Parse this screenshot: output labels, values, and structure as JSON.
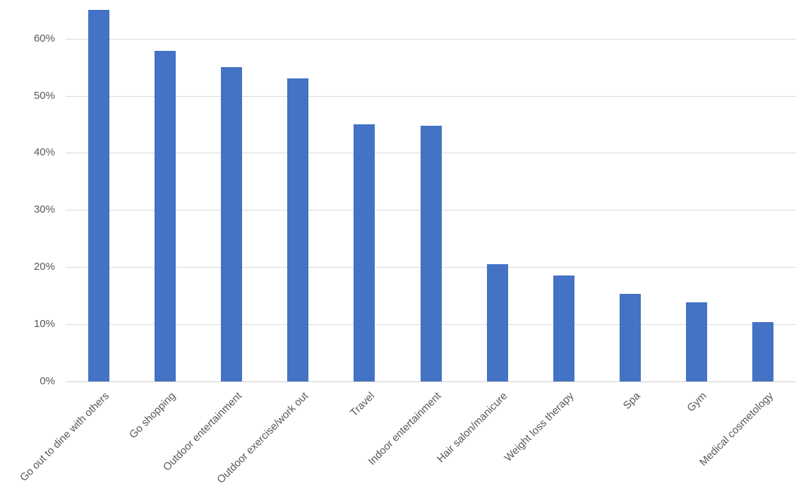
{
  "chart_data": {
    "type": "bar",
    "categories": [
      "Go out to dine with others",
      "Go shopping",
      "Outdoor entertainment",
      "Outdoor exercise/work out",
      "Travel",
      "Indoor entertainment",
      "Hair salon/manicure",
      "Weight loss therapy",
      "Spa",
      "Gym",
      "Medical cosmetology"
    ],
    "values": [
      65,
      57.8,
      55,
      53,
      45,
      44.7,
      20.5,
      18.5,
      15.3,
      13.8,
      10.4
    ],
    "value_unit": "%",
    "y_ticks": [
      "0%",
      "10%",
      "20%",
      "30%",
      "40%",
      "50%",
      "60%"
    ],
    "y_tick_values": [
      0,
      10,
      20,
      30,
      40,
      50,
      60
    ],
    "ylim": [
      0,
      65
    ],
    "grid": true,
    "legend": false,
    "title": "",
    "xlabel": "",
    "ylabel": "",
    "colors": {
      "bar": "#4472C4",
      "gridline": "#D9D9D9",
      "axis_line": "#D0D0D0",
      "tick_label": "#595959",
      "background": "#FFFFFF"
    }
  }
}
